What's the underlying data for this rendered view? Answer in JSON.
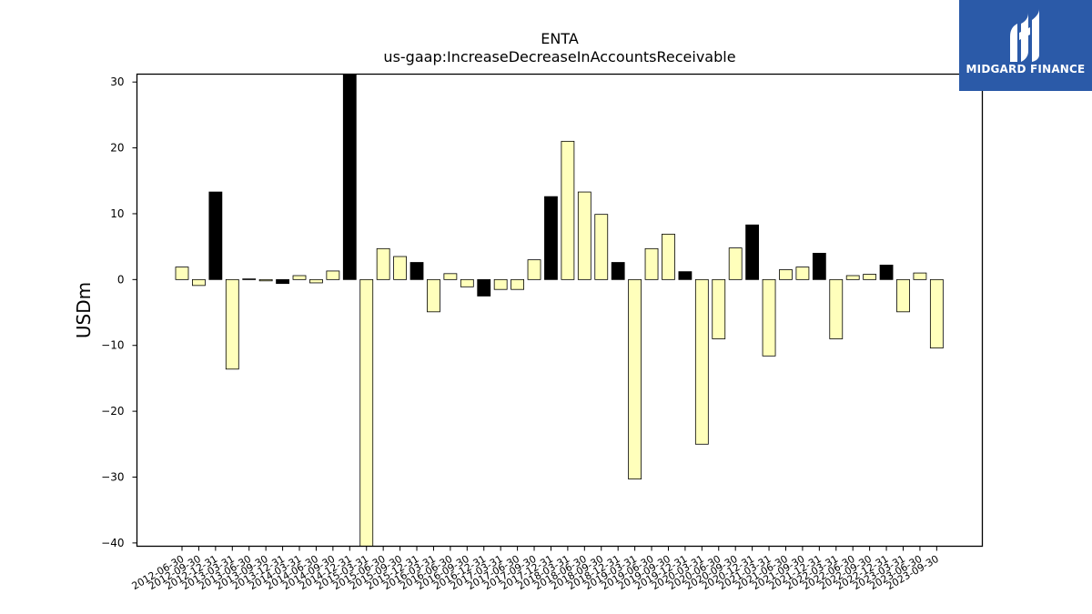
{
  "chart_data": {
    "type": "bar",
    "title": "ENTA",
    "subtitle": "us-gaap:IncreaseDecreaseInAccountsReceivable",
    "ylabel": "USDm",
    "xlabel": "",
    "ylim": [
      -40.5,
      31.2
    ],
    "yticks": [
      30,
      20,
      10,
      0,
      -10,
      -20,
      -30,
      -40
    ],
    "categories": [
      "2012-06-30",
      "2012-09-30",
      "2012-12-31",
      "2013-03-31",
      "2013-06-30",
      "2013-09-30",
      "2013-12-31",
      "2014-03-31",
      "2014-06-30",
      "2014-09-30",
      "2014-12-31",
      "2015-03-31",
      "2015-06-30",
      "2015-09-30",
      "2015-12-31",
      "2016-03-31",
      "2016-06-30",
      "2016-09-30",
      "2016-12-31",
      "2017-03-31",
      "2017-06-30",
      "2017-09-30",
      "2017-12-31",
      "2018-03-31",
      "2018-06-30",
      "2018-09-30",
      "2018-12-31",
      "2019-03-31",
      "2019-06-30",
      "2019-09-30",
      "2019-12-31",
      "2020-03-31",
      "2020-06-30",
      "2020-09-30",
      "2020-12-31",
      "2021-03-31",
      "2021-06-30",
      "2021-09-30",
      "2021-12-31",
      "2022-03-31",
      "2022-06-30",
      "2022-09-30",
      "2022-12-31",
      "2023-03-31",
      "2023-06-30",
      "2023-09-30"
    ],
    "values": [
      1.9,
      -0.9,
      13.3,
      -13.6,
      0.1,
      -0.2,
      -0.6,
      0.6,
      -0.5,
      1.3,
      31.2,
      -40.5,
      4.7,
      3.5,
      2.6,
      -4.9,
      0.9,
      -1.1,
      -2.5,
      -1.5,
      -1.5,
      3.0,
      12.6,
      21.0,
      13.3,
      9.9,
      2.6,
      -30.3,
      4.7,
      6.9,
      1.2,
      -25.0,
      -9.0,
      4.8,
      8.3,
      -11.6,
      1.5,
      1.9,
      4.0,
      -9.0,
      0.6,
      0.8,
      2.2,
      -4.9,
      1.0,
      -10.4
    ],
    "fiscal_year_end": [
      false,
      false,
      true,
      false,
      false,
      false,
      true,
      false,
      false,
      false,
      true,
      false,
      false,
      false,
      true,
      false,
      false,
      false,
      true,
      false,
      false,
      false,
      true,
      false,
      false,
      false,
      true,
      false,
      false,
      false,
      true,
      false,
      false,
      false,
      true,
      false,
      false,
      false,
      true,
      false,
      false,
      false,
      true,
      false,
      false,
      false
    ],
    "colors": {
      "quarter": "#ffffbb",
      "year_end": "#000000",
      "edge": "#000000"
    },
    "grid": false,
    "legend": "none"
  },
  "logo": {
    "text": "MIDGARD FINANCE",
    "background": "#2b5aa8"
  }
}
